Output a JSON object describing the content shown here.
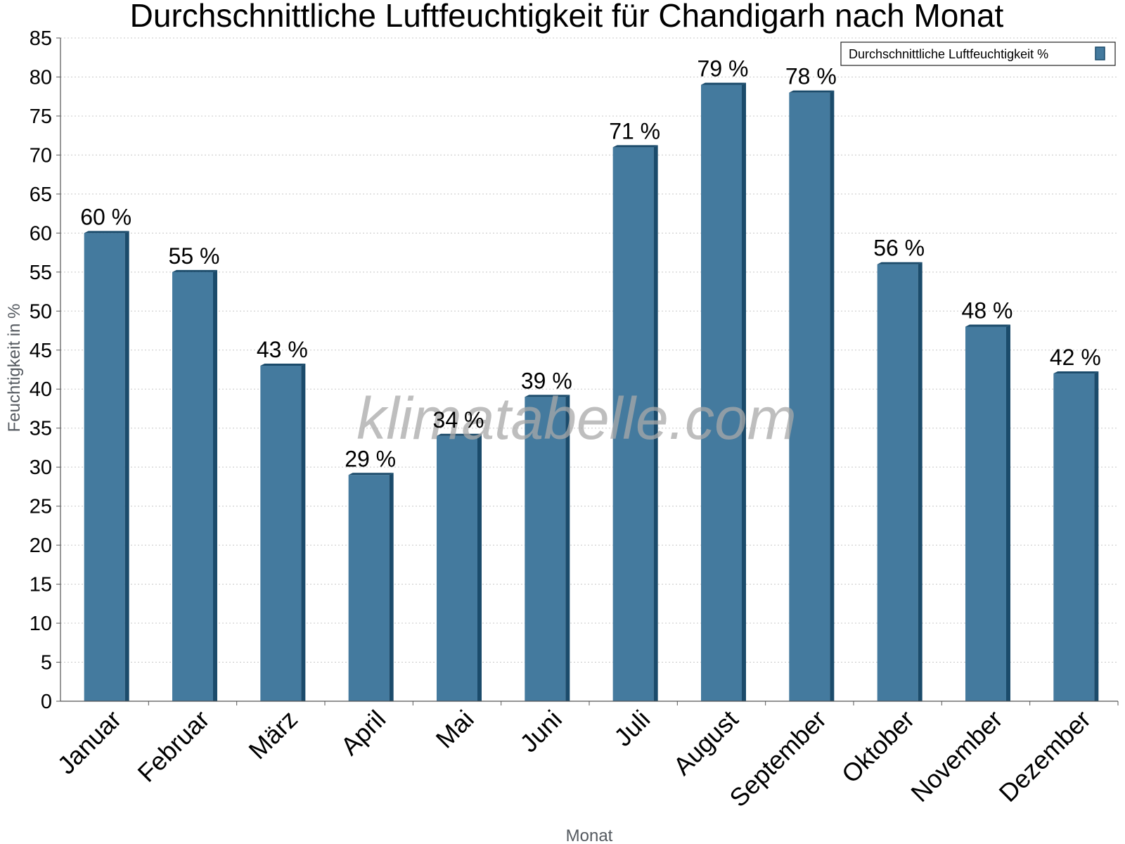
{
  "chart_data": {
    "type": "bar",
    "title": "Durchschnittliche Luftfeuchtigkeit für Chandigarh nach Monat",
    "xlabel": "Monat",
    "ylabel": "Feuchtigkeit in %",
    "categories": [
      "Januar",
      "Februar",
      "März",
      "April",
      "Mai",
      "Juni",
      "Juli",
      "August",
      "September",
      "Oktober",
      "November",
      "Dezember"
    ],
    "series": [
      {
        "name": "Durchschnittliche Luftfeuchtigkeit %",
        "values": [
          60,
          55,
          43,
          29,
          34,
          39,
          71,
          79,
          78,
          56,
          48,
          42
        ],
        "labels": [
          "60 %",
          "55 %",
          "43 %",
          "29 %",
          "34 %",
          "39 %",
          "71 %",
          "79 %",
          "78 %",
          "56 %",
          "48 %",
          "42 %"
        ],
        "color": "#447a9e",
        "edge_color": "#1b4b6b"
      }
    ],
    "ylim": [
      0,
      85
    ],
    "yticks": [
      0,
      5,
      10,
      15,
      20,
      25,
      30,
      35,
      40,
      45,
      50,
      55,
      60,
      65,
      70,
      75,
      80,
      85
    ],
    "grid": true,
    "legend": "top-right",
    "watermark": "klimatabelle.com"
  }
}
